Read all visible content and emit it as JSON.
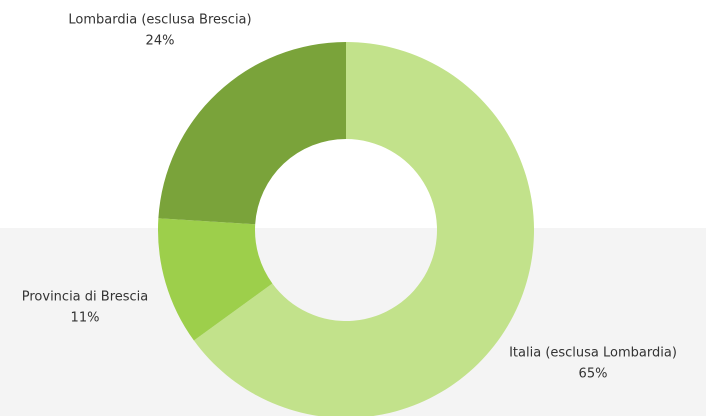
{
  "chart_data": {
    "type": "donut",
    "categories": [
      "Italia (esclusa Lombardia)",
      "Provincia di Brescia",
      "Lombardia (esclusa Brescia)"
    ],
    "values": [
      65,
      11,
      24
    ],
    "value_labels": [
      "65%",
      "11%",
      "24%"
    ],
    "colors": [
      "#c2e28b",
      "#9dcf4b",
      "#7aa33a"
    ]
  }
}
